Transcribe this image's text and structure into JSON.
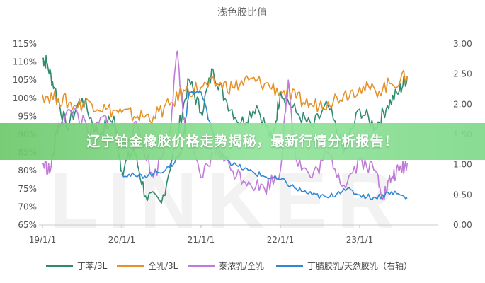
{
  "chart_data": {
    "type": "line",
    "title": "浅色胶比值",
    "x_ticks": [
      "19/1/1",
      "20/1/1",
      "21/1/1",
      "22/1/1",
      "23/1/1"
    ],
    "left_axis": {
      "ticks": [
        "115%",
        "110%",
        "105%",
        "100%",
        "95%",
        "90%",
        "85%",
        "80%",
        "75%",
        "70%",
        "65%"
      ],
      "min": 65,
      "max": 115
    },
    "right_axis": {
      "ticks": [
        "3.00",
        "2.50",
        "2.00",
        "1.50",
        "1.00",
        "0.50",
        "0.00"
      ],
      "min": 0,
      "max": 3
    },
    "series": [
      {
        "name": "丁苯/3L",
        "axis": "left",
        "color": "#2e8b6e",
        "x": [
          0,
          0.05,
          0.15,
          0.3,
          0.5,
          0.7,
          0.9,
          1.0,
          1.15,
          1.3,
          1.5,
          1.7,
          1.85,
          2.0,
          2.15,
          2.3,
          2.5,
          2.7,
          2.9,
          3.0,
          3.2,
          3.4,
          3.6,
          3.8,
          4.0,
          4.2,
          4.35,
          4.5,
          4.6
        ],
        "y": [
          111,
          110,
          103,
          92,
          100,
          90,
          95,
          80,
          86,
          73,
          71,
          90,
          105,
          96,
          108,
          100,
          93,
          98,
          88,
          102,
          96,
          92,
          98,
          85,
          97,
          92,
          98,
          102,
          106
        ]
      },
      {
        "name": "全乳/3L",
        "axis": "left",
        "color": "#e5922a",
        "x": [
          0,
          0.2,
          0.4,
          0.6,
          0.8,
          1.0,
          1.2,
          1.4,
          1.6,
          1.8,
          2.0,
          2.2,
          2.4,
          2.6,
          2.8,
          3.0,
          3.2,
          3.4,
          3.6,
          3.8,
          4.0,
          4.2,
          4.4,
          4.6
        ],
        "y": [
          101,
          100,
          98,
          99,
          97,
          96,
          95,
          95,
          98,
          102,
          103,
          104,
          103,
          105,
          104,
          102,
          100,
          98,
          99,
          101,
          103,
          102,
          104,
          106
        ]
      },
      {
        "name": "泰浓乳/全乳",
        "axis": "left",
        "color": "#c07ad8",
        "x": [
          0,
          0.1,
          0.2,
          0.4,
          0.6,
          0.8,
          1.0,
          1.2,
          1.4,
          1.6,
          1.7,
          1.8,
          2.0,
          2.2,
          2.4,
          2.6,
          2.8,
          3.0,
          3.1,
          3.2,
          3.4,
          3.6,
          3.8,
          4.0,
          4.2,
          4.3,
          4.4,
          4.5,
          4.6
        ],
        "y": [
          82,
          80,
          93,
          97,
          90,
          95,
          88,
          92,
          78,
          90,
          113,
          90,
          78,
          86,
          80,
          77,
          75,
          80,
          105,
          83,
          78,
          85,
          76,
          83,
          80,
          73,
          78,
          80,
          82
        ]
      },
      {
        "name": "丁腈胶乳/天然胶乳（右轴）",
        "axis": "right",
        "color": "#2f87d8",
        "x": [
          1.0,
          1.2,
          1.4,
          1.6,
          1.75,
          1.85,
          2.0,
          2.2,
          2.4,
          2.6,
          2.8,
          3.0,
          3.2,
          3.4,
          3.6,
          3.8,
          4.0,
          4.2,
          4.4,
          4.6
        ],
        "y": [
          0.85,
          0.8,
          0.85,
          0.95,
          1.2,
          2.2,
          2.2,
          1.3,
          1.0,
          0.9,
          0.8,
          0.75,
          0.6,
          0.5,
          0.45,
          0.6,
          0.5,
          0.45,
          0.55,
          0.45
        ]
      }
    ],
    "watermark": "LINKER",
    "legend_position": "bottom",
    "grid": false
  },
  "banner": {
    "text": "辽宁铂金橡胶价格走势揭秘，最新行情分析报告！"
  },
  "colors": {
    "banner_start": "#6cc86a",
    "banner_end": "#8fe39a"
  }
}
